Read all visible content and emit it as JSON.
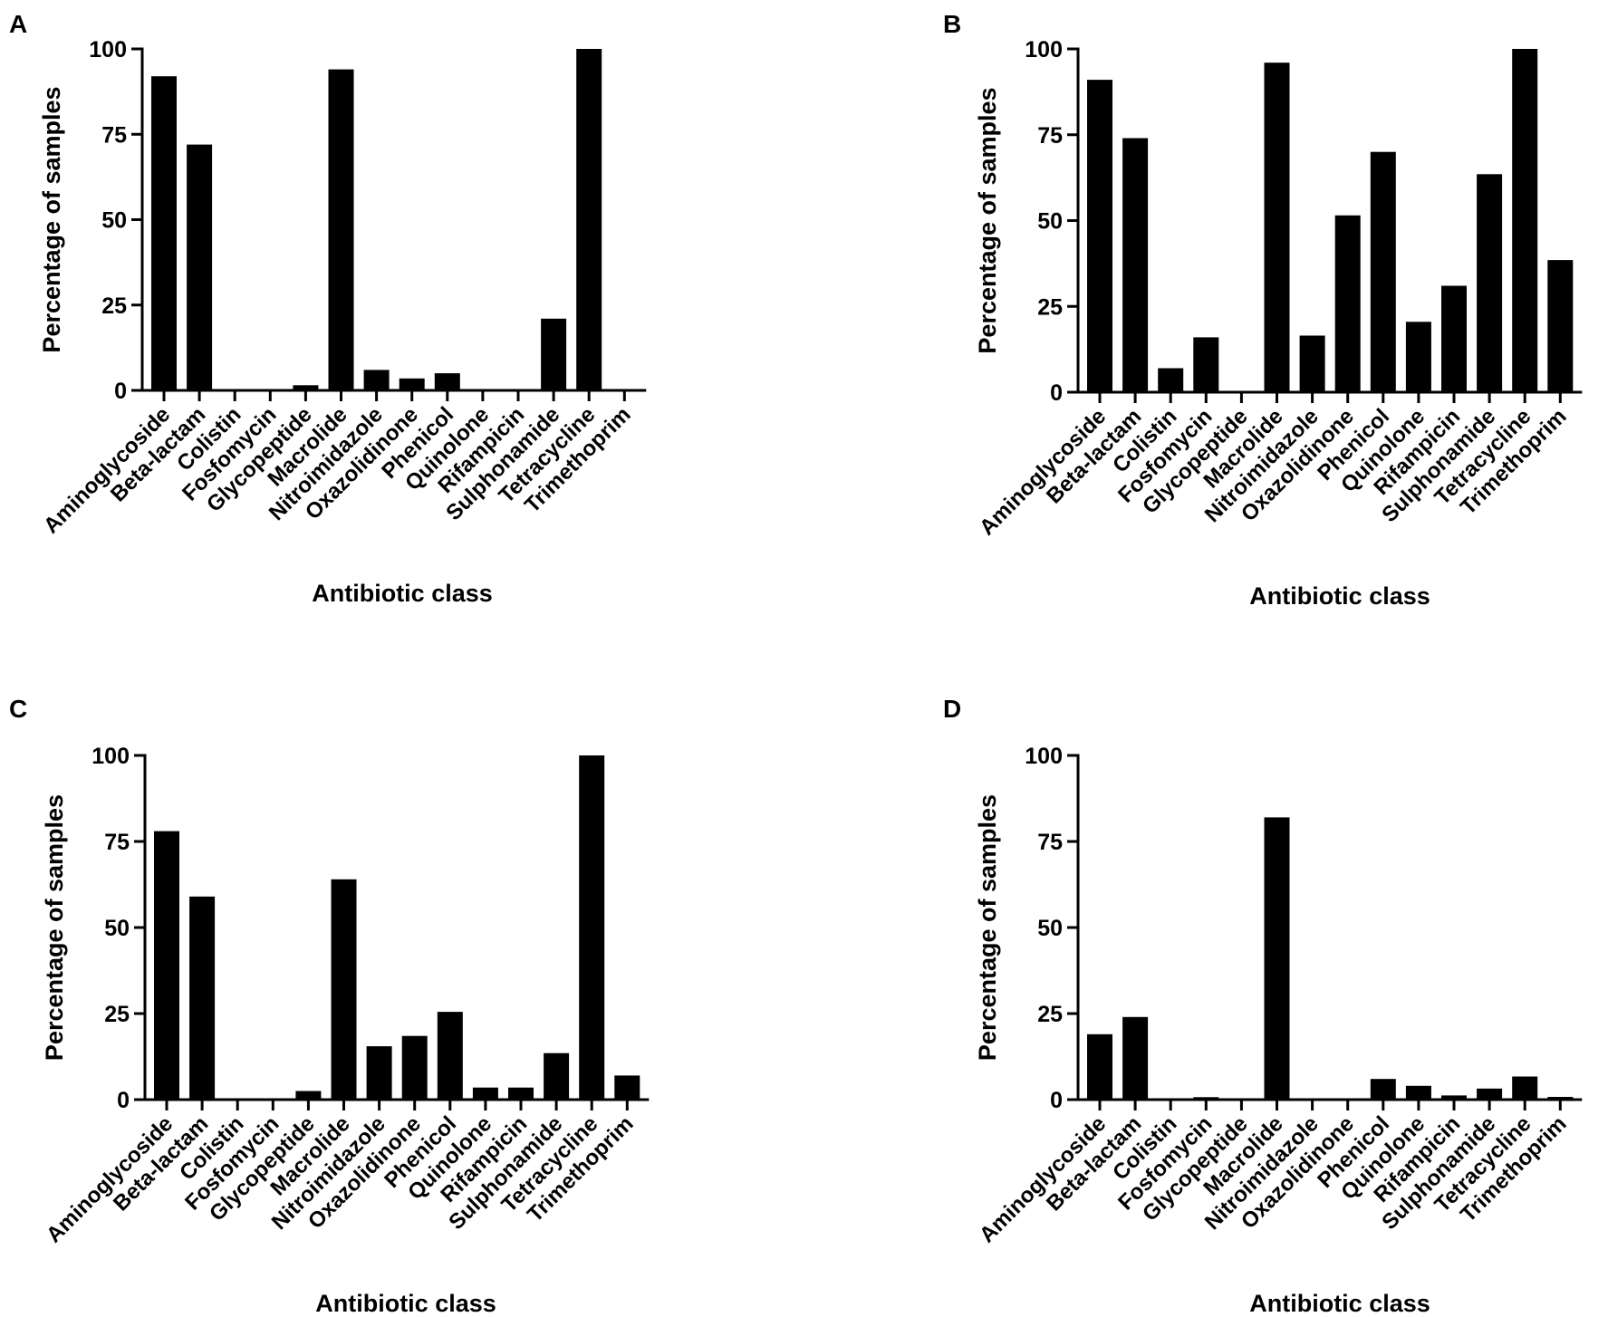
{
  "colors": {
    "bar": "#000000",
    "axis": "#000000",
    "background": "#ffffff"
  },
  "chart_data": [
    {
      "panel": "A",
      "type": "bar",
      "title": "",
      "xlabel": "Antibiotic class",
      "ylabel": "Percentage of samples",
      "ylim": [
        0,
        100
      ],
      "yticks": [
        0,
        25,
        50,
        75,
        100
      ],
      "grid": false,
      "categories": [
        "Aminoglycoside",
        "Beta-lactam",
        "Colistin",
        "Fosfomycin",
        "Glycopeptide",
        "Macrolide",
        "Nitroimidazole",
        "Oxazolidinone",
        "Phenicol",
        "Quinolone",
        "Rifampicin",
        "Sulphonamide",
        "Tetracycline",
        "Trimethoprim"
      ],
      "values": [
        92,
        72,
        0,
        0,
        1.5,
        94,
        6,
        3.5,
        5,
        0,
        0,
        21,
        100,
        0
      ]
    },
    {
      "panel": "B",
      "type": "bar",
      "title": "",
      "xlabel": "Antibiotic class",
      "ylabel": "Percentage of samples",
      "ylim": [
        0,
        100
      ],
      "yticks": [
        0,
        25,
        50,
        75,
        100
      ],
      "grid": false,
      "categories": [
        "Aminoglycoside",
        "Beta-lactam",
        "Colistin",
        "Fosfomycin",
        "Glycopeptide",
        "Macrolide",
        "Nitroimidazole",
        "Oxazolidinone",
        "Phenicol",
        "Quinolone",
        "Rifampicin",
        "Sulphonamide",
        "Tetracycline",
        "Trimethoprim"
      ],
      "values": [
        91,
        74,
        7,
        16,
        0,
        96,
        16.5,
        51.5,
        70,
        20.5,
        31,
        63.5,
        100,
        38.5
      ]
    },
    {
      "panel": "C",
      "type": "bar",
      "title": "",
      "xlabel": "Antibiotic class",
      "ylabel": "Percentage of samples",
      "ylim": [
        0,
        100
      ],
      "yticks": [
        0,
        25,
        50,
        75,
        100
      ],
      "grid": false,
      "categories": [
        "Aminoglycoside",
        "Beta-lactam",
        "Colistin",
        "Fosfomycin",
        "Glycopeptide",
        "Macrolide",
        "Nitroimidazole",
        "Oxazolidinone",
        "Phenicol",
        "Quinolone",
        "Rifampicin",
        "Sulphonamide",
        "Tetracycline",
        "Trimethoprim"
      ],
      "values": [
        78,
        59,
        0,
        0,
        2.5,
        64,
        15.5,
        18.5,
        25.5,
        3.5,
        3.5,
        13.5,
        100,
        7
      ]
    },
    {
      "panel": "D",
      "type": "bar",
      "title": "",
      "xlabel": "Antibiotic class",
      "ylabel": "Percentage of samples",
      "ylim": [
        0,
        100
      ],
      "yticks": [
        0,
        25,
        50,
        75,
        100
      ],
      "grid": false,
      "categories": [
        "Aminoglycoside",
        "Beta-lactam",
        "Colistin",
        "Fosfomycin",
        "Glycopeptide",
        "Macrolide",
        "Nitroimidazole",
        "Oxazolidinone",
        "Phenicol",
        "Quinolone",
        "Rifampicin",
        "Sulphonamide",
        "Tetracycline",
        "Trimethoprim"
      ],
      "values": [
        19,
        24,
        0,
        0.7,
        0.3,
        82,
        0.3,
        0.3,
        6,
        4,
        1.2,
        3.2,
        6.7,
        0.8
      ]
    }
  ]
}
